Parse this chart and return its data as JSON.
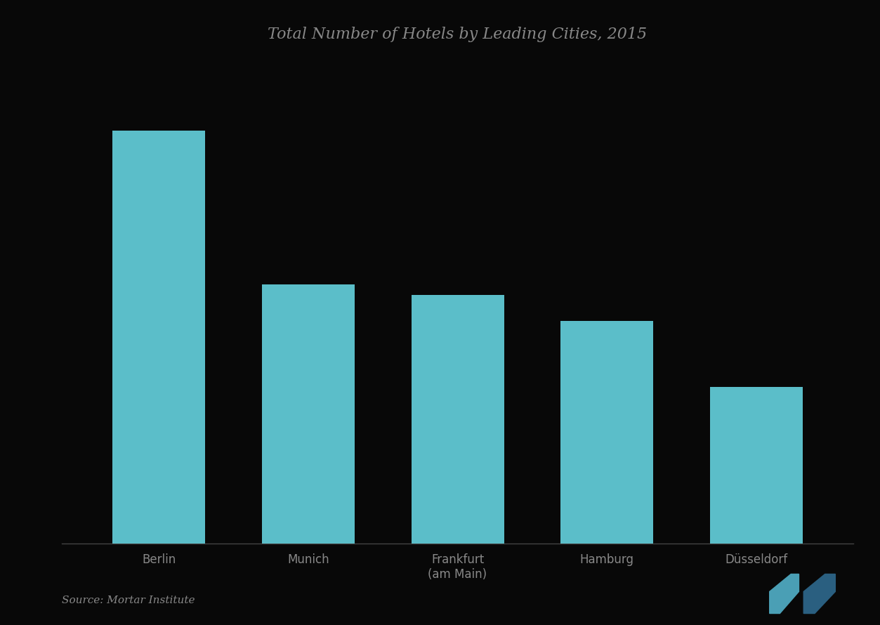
{
  "title": "Total Number of Hotels by Leading Cities, 2015",
  "categories": [
    "Berlin",
    "Munich",
    "Frankfurt\n(am Main)",
    "Hamburg",
    "Düsseldorf"
  ],
  "values": [
    390,
    245,
    235,
    210,
    148
  ],
  "bar_color": "#5bbec9",
  "background_color": "#080808",
  "title_color": "#888888",
  "tick_color": "#888888",
  "source_text": "Source: Mortar Institute",
  "ylim": [
    0,
    460
  ],
  "title_fontsize": 16,
  "tick_fontsize": 12,
  "source_fontsize": 11,
  "bar_width": 0.62
}
